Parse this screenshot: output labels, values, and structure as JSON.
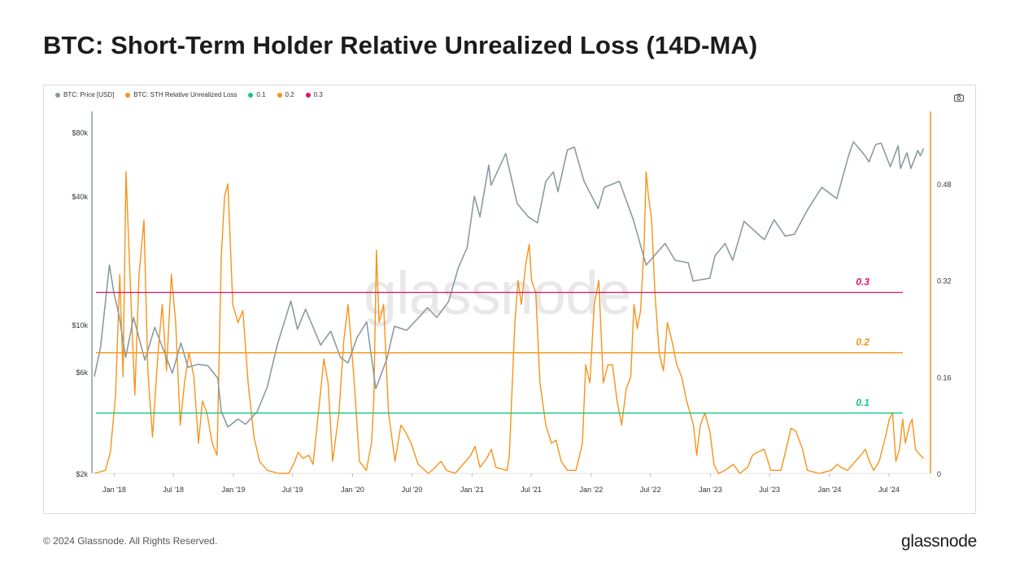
{
  "title": "BTC: Short-Term Holder Relative Unrealized Loss (14D-MA)",
  "footer": "© 2024 Glassnode. All Rights Reserved.",
  "brand": "glassnode",
  "watermark": "glassnode",
  "icons": {
    "camera": "camera-icon"
  },
  "colors": {
    "price": "#8a9ba0",
    "loss": "#f7931a",
    "h01": "#16c784",
    "h02": "#f7931a",
    "h03": "#e0126b"
  },
  "legend": [
    {
      "label": "BTC: Price [USD]",
      "color": "#8a9ba0"
    },
    {
      "label": "BTC: STH Relative Unrealized Loss",
      "color": "#f7931a"
    },
    {
      "label": "0.1",
      "color": "#16c784"
    },
    {
      "label": "0.2",
      "color": "#f7931a"
    },
    {
      "label": "0.3",
      "color": "#e0126b"
    }
  ],
  "chart_data": {
    "type": "line",
    "title": "BTC: Short-Term Holder Relative Unrealized Loss (14D-MA)",
    "x_ticks": [
      "Jan '18",
      "Jul '18",
      "Jan '19",
      "Jul '19",
      "Jan '20",
      "Jul '20",
      "Jan '21",
      "Jul '21",
      "Jan '22",
      "Jul '22",
      "Jan '23",
      "Jul '23",
      "Jan '24",
      "Jul '24"
    ],
    "y_left": {
      "scale": "log",
      "range": [
        2000,
        100000
      ],
      "ticks": [
        {
          "v": 2000,
          "label": "$2k"
        },
        {
          "v": 6000,
          "label": "$6k"
        },
        {
          "v": 10000,
          "label": "$10k"
        },
        {
          "v": 40000,
          "label": "$40k"
        },
        {
          "v": 80000,
          "label": "$80k"
        }
      ]
    },
    "y_right": {
      "scale": "linear",
      "range": [
        0,
        0.6
      ],
      "ticks": [
        {
          "v": 0,
          "label": "0"
        },
        {
          "v": 0.16,
          "label": "0.16"
        },
        {
          "v": 0.32,
          "label": "0.32"
        },
        {
          "v": 0.48,
          "label": "0.48"
        }
      ]
    },
    "thresholds": [
      {
        "value": 0.3,
        "label": "0.3",
        "color": "#e0126b"
      },
      {
        "value": 0.2,
        "label": "0.2",
        "color": "#f7931a"
      },
      {
        "value": 0.1,
        "label": "0.1",
        "color": "#16c784"
      }
    ],
    "series": [
      {
        "name": "BTC: Price [USD]",
        "axis": "left",
        "color": "#8a9ba0",
        "points": [
          [
            "2017-11-01",
            5700
          ],
          [
            "2017-11-20",
            7800
          ],
          [
            "2017-12-17",
            19000
          ],
          [
            "2017-12-31",
            14000
          ],
          [
            "2018-01-16",
            11000
          ],
          [
            "2018-02-05",
            7000
          ],
          [
            "2018-03-01",
            10800
          ],
          [
            "2018-04-05",
            6800
          ],
          [
            "2018-05-05",
            9700
          ],
          [
            "2018-06-28",
            5900
          ],
          [
            "2018-07-24",
            8200
          ],
          [
            "2018-08-15",
            6300
          ],
          [
            "2018-09-15",
            6500
          ],
          [
            "2018-10-15",
            6400
          ],
          [
            "2018-11-14",
            5600
          ],
          [
            "2018-11-25",
            3900
          ],
          [
            "2018-12-15",
            3300
          ],
          [
            "2019-01-15",
            3600
          ],
          [
            "2019-02-07",
            3400
          ],
          [
            "2019-03-15",
            3900
          ],
          [
            "2019-04-15",
            5100
          ],
          [
            "2019-05-15",
            8000
          ],
          [
            "2019-06-26",
            12900
          ],
          [
            "2019-07-16",
            9500
          ],
          [
            "2019-08-10",
            11800
          ],
          [
            "2019-09-25",
            8000
          ],
          [
            "2019-10-26",
            9300
          ],
          [
            "2019-11-25",
            7000
          ],
          [
            "2019-12-18",
            6600
          ],
          [
            "2020-01-15",
            8700
          ],
          [
            "2020-02-13",
            10300
          ],
          [
            "2020-03-12",
            5000
          ],
          [
            "2020-04-15",
            6900
          ],
          [
            "2020-05-08",
            9800
          ],
          [
            "2020-06-15",
            9400
          ],
          [
            "2020-07-27",
            11000
          ],
          [
            "2020-08-17",
            12000
          ],
          [
            "2020-09-15",
            10800
          ],
          [
            "2020-10-21",
            12800
          ],
          [
            "2020-11-20",
            18500
          ],
          [
            "2020-12-17",
            23000
          ],
          [
            "2021-01-08",
            40000
          ],
          [
            "2021-01-25",
            32000
          ],
          [
            "2021-02-21",
            56000
          ],
          [
            "2021-02-28",
            45000
          ],
          [
            "2021-04-14",
            63500
          ],
          [
            "2021-05-19",
            37000
          ],
          [
            "2021-06-22",
            32000
          ],
          [
            "2021-07-20",
            30000
          ],
          [
            "2021-08-15",
            47000
          ],
          [
            "2021-09-07",
            52000
          ],
          [
            "2021-09-21",
            42000
          ],
          [
            "2021-10-20",
            66000
          ],
          [
            "2021-11-10",
            68000
          ],
          [
            "2021-12-10",
            47000
          ],
          [
            "2022-01-22",
            35000
          ],
          [
            "2022-02-10",
            44000
          ],
          [
            "2022-03-28",
            47000
          ],
          [
            "2022-05-10",
            31000
          ],
          [
            "2022-06-18",
            19000
          ],
          [
            "2022-08-15",
            24000
          ],
          [
            "2022-09-15",
            20000
          ],
          [
            "2022-10-25",
            19500
          ],
          [
            "2022-11-09",
            16000
          ],
          [
            "2022-12-30",
            16500
          ],
          [
            "2023-01-15",
            21000
          ],
          [
            "2023-02-15",
            24000
          ],
          [
            "2023-03-10",
            20000
          ],
          [
            "2023-04-14",
            30500
          ],
          [
            "2023-06-15",
            25000
          ],
          [
            "2023-07-15",
            31000
          ],
          [
            "2023-08-18",
            26000
          ],
          [
            "2023-09-15",
            26500
          ],
          [
            "2023-10-25",
            34500
          ],
          [
            "2023-12-08",
            44000
          ],
          [
            "2024-01-23",
            39000
          ],
          [
            "2024-02-28",
            62000
          ],
          [
            "2024-03-14",
            72000
          ],
          [
            "2024-04-15",
            63000
          ],
          [
            "2024-05-01",
            58000
          ],
          [
            "2024-05-21",
            70000
          ],
          [
            "2024-06-07",
            71000
          ],
          [
            "2024-07-05",
            55000
          ],
          [
            "2024-07-29",
            69000
          ],
          [
            "2024-08-05",
            54000
          ],
          [
            "2024-08-25",
            64000
          ],
          [
            "2024-09-06",
            54000
          ],
          [
            "2024-09-27",
            65500
          ],
          [
            "2024-10-05",
            62000
          ],
          [
            "2024-10-15",
            67000
          ]
        ]
      },
      {
        "name": "BTC: STH Relative Unrealized Loss",
        "axis": "right",
        "color": "#f7931a",
        "points": [
          [
            "2017-11-01",
            0
          ],
          [
            "2017-12-05",
            0.005
          ],
          [
            "2017-12-20",
            0.035
          ],
          [
            "2018-01-05",
            0.13
          ],
          [
            "2018-01-18",
            0.33
          ],
          [
            "2018-01-28",
            0.16
          ],
          [
            "2018-02-06",
            0.5
          ],
          [
            "2018-02-20",
            0.3
          ],
          [
            "2018-03-05",
            0.13
          ],
          [
            "2018-03-18",
            0.33
          ],
          [
            "2018-04-02",
            0.42
          ],
          [
            "2018-04-14",
            0.17
          ],
          [
            "2018-04-28",
            0.06
          ],
          [
            "2018-05-15",
            0.2
          ],
          [
            "2018-05-28",
            0.28
          ],
          [
            "2018-06-10",
            0.17
          ],
          [
            "2018-06-25",
            0.33
          ],
          [
            "2018-07-08",
            0.25
          ],
          [
            "2018-07-22",
            0.08
          ],
          [
            "2018-08-04",
            0.15
          ],
          [
            "2018-08-18",
            0.2
          ],
          [
            "2018-09-02",
            0.16
          ],
          [
            "2018-09-16",
            0.05
          ],
          [
            "2018-09-28",
            0.12
          ],
          [
            "2018-10-12",
            0.1
          ],
          [
            "2018-10-28",
            0.05
          ],
          [
            "2018-11-12",
            0.03
          ],
          [
            "2018-11-25",
            0.36
          ],
          [
            "2018-12-05",
            0.46
          ],
          [
            "2018-12-15",
            0.48
          ],
          [
            "2018-12-30",
            0.28
          ],
          [
            "2019-01-15",
            0.25
          ],
          [
            "2019-01-30",
            0.27
          ],
          [
            "2019-02-15",
            0.15
          ],
          [
            "2019-03-05",
            0.06
          ],
          [
            "2019-03-22",
            0.02
          ],
          [
            "2019-04-15",
            0.005
          ],
          [
            "2019-05-20",
            0
          ],
          [
            "2019-06-20",
            0
          ],
          [
            "2019-07-08",
            0.02
          ],
          [
            "2019-07-18",
            0.035
          ],
          [
            "2019-08-02",
            0.025
          ],
          [
            "2019-08-20",
            0.03
          ],
          [
            "2019-09-02",
            0.015
          ],
          [
            "2019-09-20",
            0.11
          ],
          [
            "2019-10-05",
            0.19
          ],
          [
            "2019-10-18",
            0.15
          ],
          [
            "2019-11-01",
            0.02
          ],
          [
            "2019-11-20",
            0.1
          ],
          [
            "2019-12-05",
            0.22
          ],
          [
            "2019-12-18",
            0.28
          ],
          [
            "2020-01-05",
            0.16
          ],
          [
            "2020-01-22",
            0.02
          ],
          [
            "2020-02-12",
            0.005
          ],
          [
            "2020-02-28",
            0.05
          ],
          [
            "2020-03-06",
            0.12
          ],
          [
            "2020-03-14",
            0.37
          ],
          [
            "2020-03-22",
            0.25
          ],
          [
            "2020-04-05",
            0.28
          ],
          [
            "2020-04-20",
            0.1
          ],
          [
            "2020-05-10",
            0.02
          ],
          [
            "2020-05-28",
            0.08
          ],
          [
            "2020-06-10",
            0.07
          ],
          [
            "2020-06-28",
            0.05
          ],
          [
            "2020-07-20",
            0.015
          ],
          [
            "2020-08-20",
            0
          ],
          [
            "2020-09-10",
            0.01
          ],
          [
            "2020-09-28",
            0.02
          ],
          [
            "2020-10-15",
            0.005
          ],
          [
            "2020-11-10",
            0
          ],
          [
            "2020-12-28",
            0.03
          ],
          [
            "2021-01-10",
            0.045
          ],
          [
            "2021-01-25",
            0.01
          ],
          [
            "2021-02-15",
            0.025
          ],
          [
            "2021-03-01",
            0.04
          ],
          [
            "2021-03-15",
            0.01
          ],
          [
            "2021-04-18",
            0.005
          ],
          [
            "2021-04-25",
            0.03
          ],
          [
            "2021-05-12",
            0.25
          ],
          [
            "2021-05-22",
            0.32
          ],
          [
            "2021-06-01",
            0.28
          ],
          [
            "2021-06-15",
            0.35
          ],
          [
            "2021-06-25",
            0.38
          ],
          [
            "2021-07-02",
            0.32
          ],
          [
            "2021-07-15",
            0.3
          ],
          [
            "2021-07-28",
            0.15
          ],
          [
            "2021-08-15",
            0.08
          ],
          [
            "2021-09-01",
            0.05
          ],
          [
            "2021-09-15",
            0.055
          ],
          [
            "2021-10-01",
            0.02
          ],
          [
            "2021-10-20",
            0.005
          ],
          [
            "2021-11-15",
            0.005
          ],
          [
            "2021-12-05",
            0.05
          ],
          [
            "2021-12-15",
            0.18
          ],
          [
            "2021-12-28",
            0.15
          ],
          [
            "2022-01-10",
            0.28
          ],
          [
            "2022-01-24",
            0.32
          ],
          [
            "2022-02-07",
            0.15
          ],
          [
            "2022-02-21",
            0.18
          ],
          [
            "2022-03-07",
            0.18
          ],
          [
            "2022-03-21",
            0.12
          ],
          [
            "2022-04-04",
            0.08
          ],
          [
            "2022-04-18",
            0.14
          ],
          [
            "2022-05-02",
            0.16
          ],
          [
            "2022-05-12",
            0.28
          ],
          [
            "2022-05-22",
            0.24
          ],
          [
            "2022-06-01",
            0.27
          ],
          [
            "2022-06-12",
            0.38
          ],
          [
            "2022-06-18",
            0.5
          ],
          [
            "2022-06-25",
            0.46
          ],
          [
            "2022-07-05",
            0.42
          ],
          [
            "2022-07-15",
            0.3
          ],
          [
            "2022-07-28",
            0.2
          ],
          [
            "2022-08-10",
            0.17
          ],
          [
            "2022-08-22",
            0.25
          ],
          [
            "2022-09-05",
            0.22
          ],
          [
            "2022-09-20",
            0.18
          ],
          [
            "2022-10-05",
            0.16
          ],
          [
            "2022-10-20",
            0.12
          ],
          [
            "2022-11-05",
            0.09
          ],
          [
            "2022-11-10",
            0.08
          ],
          [
            "2022-11-20",
            0.03
          ],
          [
            "2022-12-01",
            0.08
          ],
          [
            "2022-12-15",
            0.1
          ],
          [
            "2022-12-30",
            0.07
          ],
          [
            "2023-01-12",
            0.015
          ],
          [
            "2023-01-25",
            0
          ],
          [
            "2023-02-15",
            0.005
          ],
          [
            "2023-03-12",
            0.015
          ],
          [
            "2023-04-01",
            0
          ],
          [
            "2023-04-25",
            0.01
          ],
          [
            "2023-05-10",
            0.03
          ],
          [
            "2023-05-25",
            0.035
          ],
          [
            "2023-06-15",
            0.04
          ],
          [
            "2023-07-05",
            0.005
          ],
          [
            "2023-08-05",
            0.005
          ],
          [
            "2023-08-25",
            0.05
          ],
          [
            "2023-09-05",
            0.075
          ],
          [
            "2023-09-20",
            0.07
          ],
          [
            "2023-10-10",
            0.04
          ],
          [
            "2023-10-25",
            0.005
          ],
          [
            "2023-12-01",
            0
          ],
          [
            "2024-01-05",
            0.005
          ],
          [
            "2024-01-25",
            0.015
          ],
          [
            "2024-02-05",
            0.01
          ],
          [
            "2024-02-25",
            0.005
          ],
          [
            "2024-03-20",
            0.02
          ],
          [
            "2024-04-05",
            0.03
          ],
          [
            "2024-04-20",
            0.04
          ],
          [
            "2024-05-02",
            0.02
          ],
          [
            "2024-05-15",
            0.005
          ],
          [
            "2024-06-01",
            0.02
          ],
          [
            "2024-06-20",
            0.06
          ],
          [
            "2024-07-02",
            0.09
          ],
          [
            "2024-07-12",
            0.1
          ],
          [
            "2024-07-22",
            0.02
          ],
          [
            "2024-08-02",
            0.04
          ],
          [
            "2024-08-12",
            0.09
          ],
          [
            "2024-08-20",
            0.05
          ],
          [
            "2024-09-02",
            0.08
          ],
          [
            "2024-09-10",
            0.09
          ],
          [
            "2024-09-20",
            0.04
          ],
          [
            "2024-10-05",
            0.03
          ],
          [
            "2024-10-15",
            0.025
          ]
        ]
      }
    ]
  }
}
